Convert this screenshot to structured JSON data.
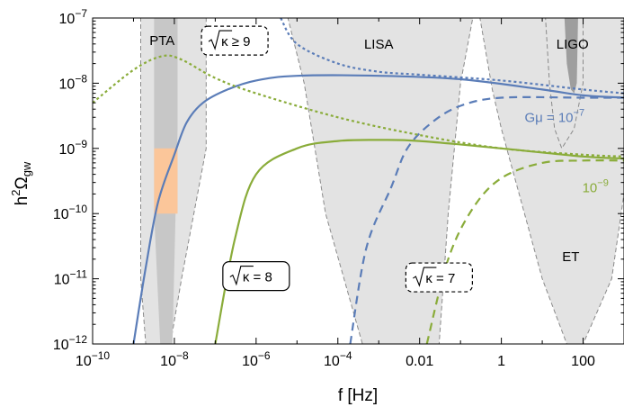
{
  "chart_data": {
    "type": "line",
    "xlabel": "f [Hz]",
    "ylabel": "h²Ω_gw",
    "ylabel_parts": {
      "base": "h",
      "sup": "2",
      "mid": "Ω",
      "sub": "gw"
    },
    "x_scale": "log",
    "y_scale": "log",
    "xlim": [
      1e-10,
      1000
    ],
    "ylim": [
      1e-12,
      1e-07
    ],
    "x_ticks": [
      {
        "value": 1e-10,
        "base": "10",
        "exp": "−10"
      },
      {
        "value": 1e-08,
        "base": "10",
        "exp": "−8"
      },
      {
        "value": 1e-06,
        "base": "10",
        "exp": "−6"
      },
      {
        "value": 0.0001,
        "base": "10",
        "exp": "−4"
      },
      {
        "value": 0.01,
        "text": "0.01"
      },
      {
        "value": 1,
        "text": "1"
      },
      {
        "value": 100,
        "text": "100"
      }
    ],
    "y_ticks": [
      {
        "value": 1e-07,
        "base": "10",
        "exp": "−7"
      },
      {
        "value": 1e-08,
        "base": "10",
        "exp": "−8"
      },
      {
        "value": 1e-09,
        "base": "10",
        "exp": "−9"
      },
      {
        "value": 1e-10,
        "base": "10",
        "exp": "−10"
      },
      {
        "value": 1e-11,
        "base": "10",
        "exp": "−11"
      },
      {
        "value": 1e-12,
        "base": "10",
        "exp": "−12"
      }
    ],
    "grid": false,
    "colors": {
      "blue": "#5b7db8",
      "green": "#8aac3a",
      "sensitivity": "#e3e3e3",
      "pta_dark": "#c7c7c7",
      "ligo_dark": "#9e9e9e",
      "orange": "#fbc69a",
      "dashed_edge": "#8a8a8a"
    },
    "series": [
      {
        "id": "blue-solid",
        "color": "blue",
        "style": "solid",
        "points": [
          [
            1e-09,
            1e-12
          ],
          [
            2e-09,
            1.5e-11
          ],
          [
            4e-09,
            1.5e-10
          ],
          [
            1e-08,
            8e-10
          ],
          [
            2e-08,
            2.5e-09
          ],
          [
            5e-08,
            5e-09
          ],
          [
            2e-07,
            8e-09
          ],
          [
            1e-06,
            1.1e-08
          ],
          [
            1e-05,
            1.3e-08
          ],
          [
            0.001,
            1.3e-08
          ],
          [
            0.1,
            1.15e-08
          ],
          [
            10,
            8e-09
          ],
          [
            100,
            6.5e-09
          ],
          [
            1000,
            6e-09
          ]
        ]
      },
      {
        "id": "blue-dotted",
        "color": "blue",
        "style": "dotted",
        "points": [
          [
            4e-06,
            1e-07
          ],
          [
            1e-05,
            4e-08
          ],
          [
            0.0001,
            2e-08
          ],
          [
            0.001,
            1.5e-08
          ],
          [
            0.01,
            1.35e-08
          ],
          [
            1,
            1.1e-08
          ],
          [
            100,
            8e-09
          ],
          [
            1000,
            7e-09
          ]
        ]
      },
      {
        "id": "blue-dashed",
        "color": "blue",
        "style": "dashed",
        "points": [
          [
            0.0002,
            1e-12
          ],
          [
            0.0005,
            3e-11
          ],
          [
            0.002,
            2.5e-10
          ],
          [
            0.005,
            1e-09
          ],
          [
            0.02,
            2.5e-09
          ],
          [
            0.1,
            4.5e-09
          ],
          [
            1,
            6e-09
          ],
          [
            100,
            6e-09
          ],
          [
            1000,
            6e-09
          ]
        ]
      },
      {
        "id": "green-solid",
        "color": "green",
        "style": "solid",
        "points": [
          [
            1e-07,
            1e-12
          ],
          [
            3e-07,
            4e-11
          ],
          [
            1e-06,
            4e-10
          ],
          [
            1e-05,
            1e-09
          ],
          [
            0.0001,
            1.3e-09
          ],
          [
            0.001,
            1.35e-09
          ],
          [
            0.01,
            1.3e-09
          ],
          [
            1,
            1e-09
          ],
          [
            100,
            7.5e-10
          ],
          [
            1000,
            7e-10
          ]
        ]
      },
      {
        "id": "green-dotted",
        "color": "green",
        "style": "dotted",
        "points": [
          [
            1e-10,
            5e-09
          ],
          [
            1e-09,
            1.6e-08
          ],
          [
            5e-09,
            2.6e-08
          ],
          [
            1.5e-08,
            2.3e-08
          ],
          [
            1e-07,
            1.2e-08
          ],
          [
            1e-06,
            7e-09
          ],
          [
            0.0001,
            3e-09
          ],
          [
            0.01,
            1.6e-09
          ],
          [
            1,
            1e-09
          ],
          [
            100,
            8e-10
          ],
          [
            1000,
            7.5e-10
          ]
        ]
      },
      {
        "id": "green-dashed",
        "color": "green",
        "style": "dashed",
        "points": [
          [
            0.015,
            1e-12
          ],
          [
            0.05,
            2e-11
          ],
          [
            0.2,
            1.2e-10
          ],
          [
            1,
            3.5e-10
          ],
          [
            10,
            6e-10
          ],
          [
            100,
            6.5e-10
          ],
          [
            1000,
            6.5e-10
          ]
        ]
      }
    ],
    "regions": [
      {
        "id": "pta-light",
        "color": "sensitivity",
        "points": [
          [
            1.5e-09,
            1e-07
          ],
          [
            6e-08,
            1e-07
          ],
          [
            6e-08,
            1e-09
          ],
          [
            1.5e-08,
            1e-11
          ],
          [
            8e-09,
            1e-12
          ],
          [
            2e-09,
            1e-12
          ],
          [
            1.5e-09,
            1e-11
          ]
        ]
      },
      {
        "id": "pta-dark",
        "color": "pta_dark",
        "points": [
          [
            3.2e-09,
            1e-07
          ],
          [
            1.2e-08,
            1e-07
          ],
          [
            1.2e-08,
            2e-09
          ],
          [
            9e-09,
            1e-12
          ],
          [
            4.5e-09,
            1e-12
          ],
          [
            3.2e-09,
            1e-10
          ]
        ]
      },
      {
        "id": "pta-orange",
        "color": "orange",
        "points": [
          [
            3.2e-09,
            1e-09
          ],
          [
            1.2e-08,
            1e-09
          ],
          [
            1.2e-08,
            1e-10
          ],
          [
            3.2e-09,
            1e-10
          ]
        ]
      },
      {
        "id": "lisa",
        "color": "sensitivity",
        "points": [
          [
            6e-06,
            1e-07
          ],
          [
            1000,
            1e-07
          ],
          [
            1000,
            1e-07
          ],
          [
            0.2,
            1e-07
          ],
          [
            0.1,
            1e-08
          ],
          [
            0.05,
            1e-10
          ],
          [
            0.03,
            1e-12
          ],
          [
            0.0004,
            1e-12
          ],
          [
            5e-05,
            1e-10
          ],
          [
            1.5e-05,
            1e-08
          ]
        ]
      },
      {
        "id": "et",
        "color": "sensitivity",
        "points": [
          [
            0.3,
            1e-07
          ],
          [
            1000,
            1e-07
          ],
          [
            1000,
            2e-10
          ],
          [
            500,
            1e-11
          ],
          [
            100,
            1e-12
          ],
          [
            40,
            1e-12
          ],
          [
            10,
            1e-11
          ],
          [
            1,
            2e-09
          ],
          [
            0.6,
            8e-09
          ]
        ]
      },
      {
        "id": "ligo-light",
        "color": "sensitivity",
        "points": [
          [
            12,
            1e-07
          ],
          [
            100,
            1e-07
          ],
          [
            100,
            1e-08
          ],
          [
            60,
            2e-09
          ],
          [
            30,
            1e-09
          ],
          [
            20,
            2e-09
          ],
          [
            15,
            1e-08
          ]
        ]
      },
      {
        "id": "ligo-dark",
        "color": "ligo_dark",
        "points": [
          [
            35,
            1e-07
          ],
          [
            75,
            1e-07
          ],
          [
            70,
            1e-08
          ],
          [
            60,
            7e-09
          ],
          [
            50,
            8e-09
          ],
          [
            40,
            2e-08
          ]
        ]
      }
    ],
    "annotations": [
      {
        "id": "pta",
        "text": "PTA",
        "x": 5e-09,
        "y": 4.5e-08
      },
      {
        "id": "lisa",
        "text": "LISA",
        "x": 0.001,
        "y": 4e-08
      },
      {
        "id": "ligo",
        "text": "LIGO",
        "x": 55,
        "y": 4e-08
      },
      {
        "id": "et",
        "text": "ET",
        "x": 50,
        "y": 2.2e-11
      },
      {
        "id": "gmu-7",
        "text_base": "Gμ = 10",
        "text_exp": "−7",
        "color": "blue",
        "x": 20,
        "y": 3e-09
      },
      {
        "id": "gmu-9",
        "text_base": "10",
        "text_exp": "−9",
        "color": "green",
        "x": 200,
        "y": 2.5e-10
      }
    ],
    "boxes": [
      {
        "id": "kappa-9",
        "text": "κ ≥ 9",
        "style": "dashed",
        "x": 3e-07,
        "y": 4.5e-08
      },
      {
        "id": "kappa-8",
        "text": "κ = 8",
        "style": "solid",
        "x": 1e-06,
        "y": 1.1e-11
      },
      {
        "id": "kappa-7",
        "text": "κ = 7",
        "style": "dashed",
        "x": 0.03,
        "y": 1.05e-11
      }
    ]
  }
}
